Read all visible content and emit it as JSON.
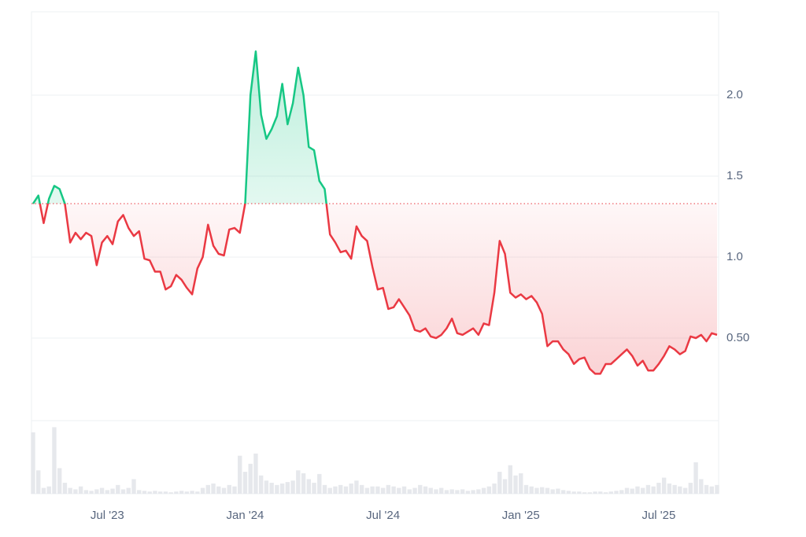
{
  "chart_data": {
    "type": "line",
    "categories": [
      null,
      null,
      null,
      null,
      null,
      null,
      null,
      null,
      null,
      null,
      null,
      null,
      null,
      null,
      "Jul '23",
      null,
      null,
      null,
      null,
      null,
      null,
      null,
      null,
      null,
      null,
      null,
      null,
      null,
      null,
      null,
      null,
      null,
      null,
      null,
      null,
      null,
      null,
      null,
      null,
      null,
      "Jan '24",
      null,
      null,
      null,
      null,
      null,
      null,
      null,
      null,
      null,
      null,
      null,
      null,
      null,
      null,
      null,
      null,
      null,
      null,
      null,
      null,
      null,
      null,
      null,
      null,
      null,
      "Jul '24",
      null,
      null,
      null,
      null,
      null,
      null,
      null,
      null,
      null,
      null,
      null,
      null,
      null,
      null,
      null,
      null,
      null,
      null,
      null,
      null,
      null,
      null,
      null,
      null,
      null,
      "Jan '25",
      null,
      null,
      null,
      null,
      null,
      null,
      null,
      null,
      null,
      null,
      null,
      null,
      null,
      null,
      null,
      null,
      null,
      null,
      null,
      null,
      null,
      null,
      null,
      null,
      null,
      "Jul '25",
      null,
      null,
      null,
      null,
      null,
      null,
      null,
      null,
      null,
      null,
      null
    ],
    "series": [
      {
        "colors": {
          "up": "#16c784",
          "down": "#ea3943"
        },
        "values": [
          1.33,
          1.38,
          1.21,
          1.36,
          1.44,
          1.42,
          1.33,
          1.09,
          1.15,
          1.11,
          1.15,
          1.13,
          0.95,
          1.09,
          1.13,
          1.08,
          1.22,
          1.26,
          1.18,
          1.13,
          1.16,
          0.99,
          0.98,
          0.91,
          0.91,
          0.8,
          0.82,
          0.89,
          0.86,
          0.81,
          0.77,
          0.93,
          1.0,
          1.2,
          1.07,
          1.02,
          1.01,
          1.17,
          1.18,
          1.15,
          1.33,
          2.0,
          2.27,
          1.88,
          1.73,
          1.79,
          1.87,
          2.07,
          1.82,
          1.95,
          2.17,
          2.0,
          1.68,
          1.66,
          1.47,
          1.42,
          1.14,
          1.09,
          1.03,
          1.04,
          0.99,
          1.19,
          1.13,
          1.1,
          0.94,
          0.8,
          0.81,
          0.68,
          0.69,
          0.74,
          0.69,
          0.64,
          0.55,
          0.54,
          0.56,
          0.51,
          0.5,
          0.52,
          0.56,
          0.62,
          0.53,
          0.52,
          0.54,
          0.56,
          0.52,
          0.59,
          0.58,
          0.78,
          1.1,
          1.02,
          0.78,
          0.75,
          0.77,
          0.74,
          0.76,
          0.72,
          0.65,
          0.45,
          0.48,
          0.48,
          0.43,
          0.4,
          0.34,
          0.37,
          0.38,
          0.31,
          0.28,
          0.28,
          0.34,
          0.34,
          0.37,
          0.4,
          0.43,
          0.39,
          0.33,
          0.36,
          0.3,
          0.3,
          0.34,
          0.39,
          0.45,
          0.43,
          0.4,
          0.42,
          0.51,
          0.5,
          0.52,
          0.48,
          0.53,
          0.52
        ]
      },
      {
        "type": "bar",
        "axis": "y2",
        "color": "#e6e8ec",
        "values": [
          84,
          32,
          8,
          10,
          91,
          35,
          15,
          8,
          6,
          10,
          5,
          4,
          6,
          8,
          5,
          7,
          12,
          6,
          8,
          20,
          5,
          4,
          3,
          4,
          3,
          3,
          2,
          3,
          4,
          3,
          4,
          3,
          8,
          12,
          14,
          10,
          8,
          12,
          10,
          52,
          30,
          41,
          55,
          25,
          18,
          15,
          12,
          14,
          16,
          18,
          32,
          28,
          20,
          15,
          27,
          12,
          8,
          10,
          12,
          10,
          14,
          18,
          12,
          8,
          10,
          10,
          8,
          12,
          10,
          8,
          10,
          6,
          8,
          12,
          10,
          8,
          6,
          8,
          5,
          6,
          5,
          6,
          4,
          5,
          6,
          8,
          10,
          14,
          30,
          20,
          39,
          25,
          28,
          12,
          10,
          8,
          9,
          8,
          6,
          7,
          5,
          4,
          3,
          3,
          2,
          2,
          3,
          3,
          2,
          3,
          4,
          5,
          8,
          7,
          10,
          8,
          12,
          10,
          15,
          22,
          14,
          12,
          10,
          8,
          15,
          43,
          20,
          12,
          10,
          12
        ]
      }
    ],
    "ylim": [
      0,
      2.5
    ],
    "yticks": [
      {
        "value": 0.5,
        "label": "0.50"
      },
      {
        "value": 1.0,
        "label": "1.0"
      },
      {
        "value": 1.5,
        "label": "1.5"
      },
      {
        "value": 2.0,
        "label": "2.0"
      }
    ],
    "y2lim": [
      0,
      100
    ],
    "grid": true
  }
}
